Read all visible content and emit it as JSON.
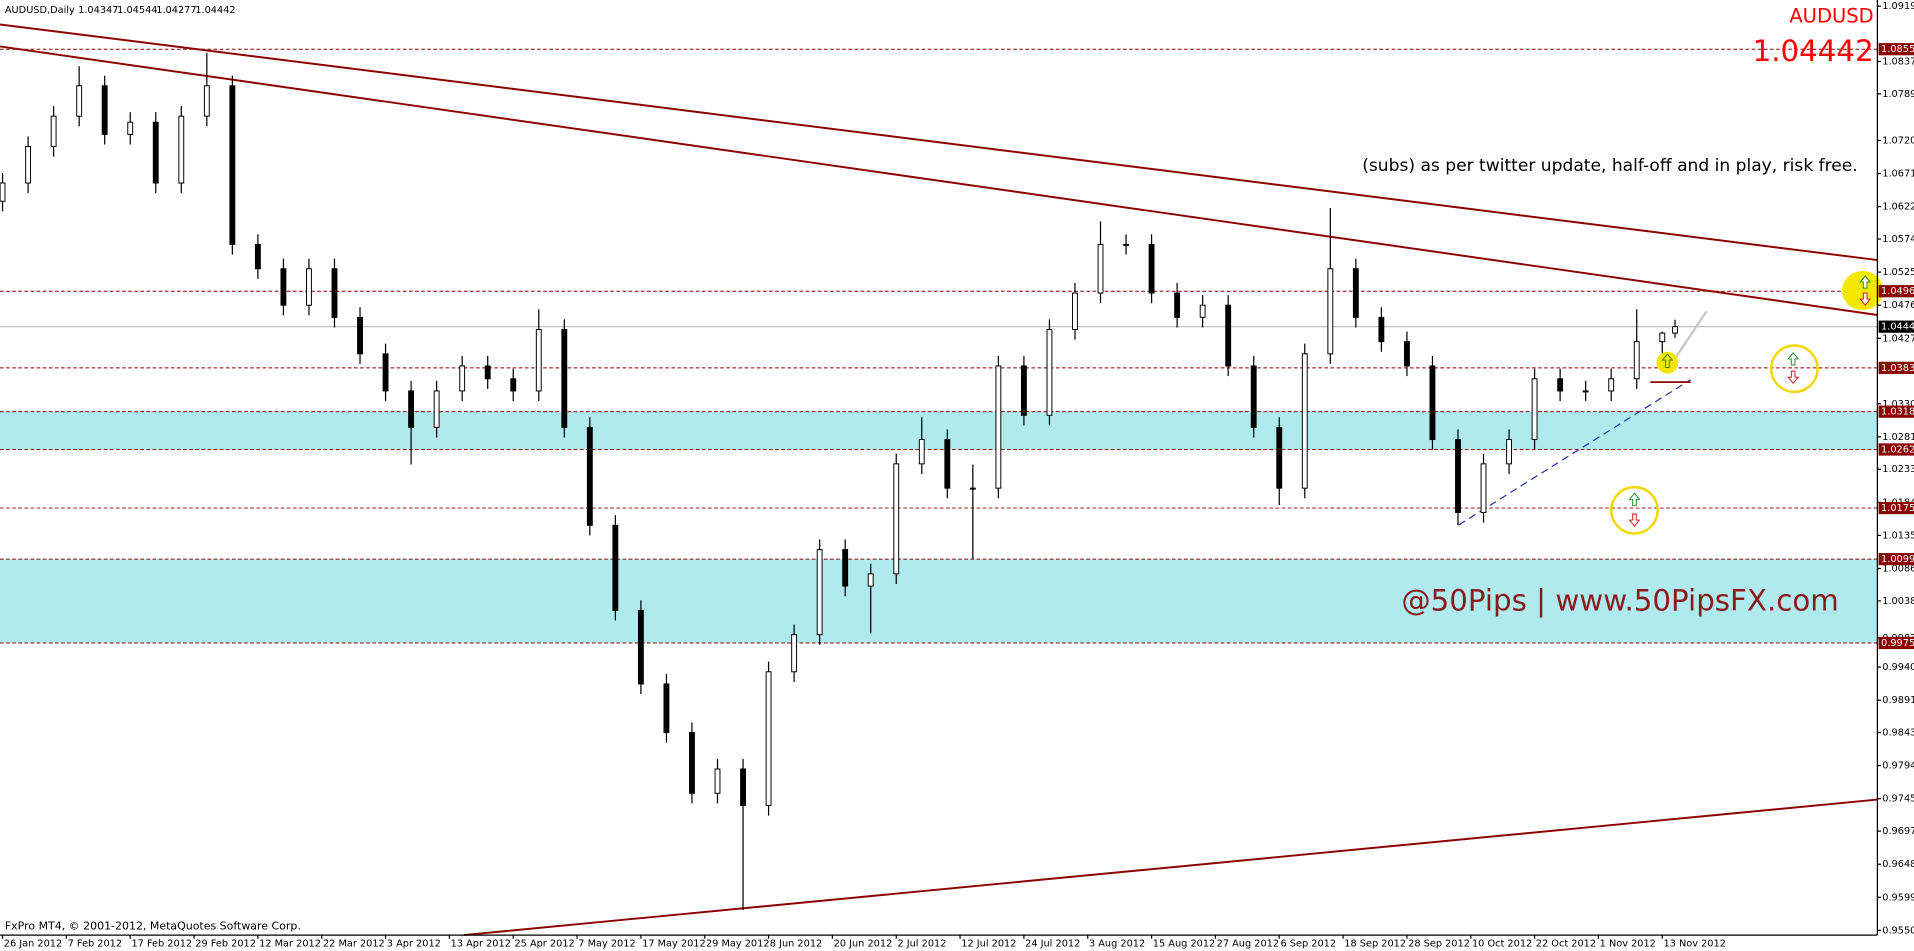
{
  "chart_data": {
    "type": "candlestick",
    "header": {
      "symbol": "AUDUSD,Daily",
      "ohlc": [
        "1.04347",
        "1.04544",
        "1.04277",
        "1.04442"
      ]
    },
    "symbol_big": "AUDUSD",
    "price_big": "1.04442",
    "annotation": "(subs) as per twitter update, half-off and in play, risk free.",
    "watermark": "@50Pips | www.50PipsFX.com",
    "footer": "FxPro MT4, © 2001-2012, MetaQuotes Software Corp.",
    "x": [
      0,
      4,
      8,
      12,
      16,
      20,
      24,
      28,
      32,
      36,
      40,
      44,
      48,
      52,
      56,
      60,
      64,
      68,
      72,
      76,
      80,
      84,
      88,
      92,
      96,
      100,
      104,
      108,
      112,
      116,
      120,
      124,
      128,
      132,
      136,
      140,
      144,
      148,
      152,
      156,
      160,
      164,
      168,
      172,
      176,
      180,
      184,
      188,
      192,
      196,
      200,
      204,
      208,
      212,
      216,
      220,
      224,
      228,
      232,
      236,
      240,
      244,
      248,
      252,
      256,
      260,
      262
    ],
    "open": [
      1.063,
      1.0657,
      1.0711,
      1.0756,
      1.0801,
      1.0729,
      1.0747,
      1.0657,
      1.0756,
      1.0801,
      1.0566,
      1.053,
      1.0476,
      1.053,
      1.0458,
      1.0404,
      1.0349,
      1.0295,
      1.0349,
      1.0386,
      1.0367,
      1.0349,
      1.044,
      1.0295,
      1.015,
      1.0024,
      0.9915,
      0.9843,
      0.9753,
      0.9789,
      0.9735,
      0.9933,
      0.9988,
      1.0114,
      1.006,
      1.0078,
      1.0241,
      1.0277,
      1.0205,
      1.0205,
      1.0386,
      1.0313,
      1.044,
      1.0494,
      1.0566,
      1.0566,
      1.0494,
      1.0458,
      1.0476,
      1.0386,
      1.0295,
      1.0205,
      1.0404,
      1.053,
      1.0458,
      1.0422,
      1.0386,
      1.0277,
      1.0169,
      1.0241,
      1.0277,
      1.0367,
      1.0349,
      1.0349,
      1.0367,
      1.0422,
      1.04347
    ],
    "high": [
      1.0672,
      1.0726,
      1.0771,
      1.083,
      1.0816,
      1.0762,
      1.0762,
      1.0771,
      1.085,
      1.0816,
      1.0581,
      1.0545,
      1.0545,
      1.0545,
      1.0473,
      1.0419,
      1.0364,
      1.0364,
      1.0401,
      1.0401,
      1.0382,
      1.047,
      1.0455,
      1.031,
      1.0165,
      1.0039,
      0.993,
      0.9858,
      0.9804,
      0.9804,
      0.9948,
      1.0003,
      1.0129,
      1.0129,
      1.0093,
      1.0256,
      1.031,
      1.0292,
      1.024,
      1.0401,
      1.0401,
      1.0455,
      1.0509,
      1.06,
      1.0581,
      1.0581,
      1.0509,
      1.0491,
      1.0491,
      1.0401,
      1.031,
      1.0419,
      1.062,
      1.0545,
      1.0473,
      1.0437,
      1.0401,
      1.0292,
      1.0256,
      1.0292,
      1.0382,
      1.0382,
      1.0364,
      1.0382,
      1.047,
      1.0437,
      1.04544
    ],
    "low": [
      1.0615,
      1.0642,
      1.0696,
      1.0741,
      1.0714,
      1.0714,
      1.0642,
      1.0642,
      1.0741,
      1.0551,
      1.0515,
      1.0461,
      1.0461,
      1.0443,
      1.0389,
      1.0334,
      1.024,
      1.028,
      1.0334,
      1.0352,
      1.0334,
      1.0334,
      1.028,
      1.0135,
      1.0009,
      0.99,
      0.9828,
      0.9738,
      0.9738,
      0.958,
      0.972,
      0.9918,
      0.9973,
      1.0045,
      0.999,
      1.0063,
      1.0226,
      1.019,
      1.01,
      1.019,
      1.0298,
      1.0298,
      1.0425,
      1.0479,
      1.0551,
      1.0479,
      1.0443,
      1.0443,
      1.0371,
      1.028,
      1.018,
      1.019,
      1.0389,
      1.0443,
      1.0407,
      1.0371,
      1.0262,
      1.015,
      1.0154,
      1.0226,
      1.0262,
      1.0334,
      1.0334,
      1.0334,
      1.0352,
      1.038,
      1.04277
    ],
    "close": [
      1.0657,
      1.0711,
      1.0756,
      1.0801,
      1.0729,
      1.0747,
      1.0657,
      1.0756,
      1.0801,
      1.0566,
      1.053,
      1.0476,
      1.053,
      1.0458,
      1.0404,
      1.0349,
      1.0295,
      1.0349,
      1.0386,
      1.0367,
      1.0349,
      1.044,
      1.0295,
      1.015,
      1.0024,
      0.9915,
      0.9843,
      0.9753,
      0.9789,
      0.9735,
      0.9933,
      0.9988,
      1.0114,
      1.006,
      1.0078,
      1.0241,
      1.0277,
      1.0205,
      1.0205,
      1.0386,
      1.0313,
      1.044,
      1.0494,
      1.0566,
      1.0566,
      1.0494,
      1.0458,
      1.0476,
      1.0386,
      1.0295,
      1.0205,
      1.0404,
      1.053,
      1.0458,
      1.0422,
      1.0386,
      1.0277,
      1.0169,
      1.0241,
      1.0277,
      1.0367,
      1.0349,
      1.0349,
      1.0367,
      1.0422,
      1.04347,
      1.04442
    ],
    "xlim": [
      -0.4,
      293.7
    ],
    "ylim": [
      0.9543,
      1.0928
    ],
    "xticks": [
      {
        "value": 0,
        "label": "26 Jan 2012"
      },
      {
        "value": 10,
        "label": "7 Feb 2012"
      },
      {
        "value": 20,
        "label": "17 Feb 2012"
      },
      {
        "value": 30,
        "label": "29 Feb 2012"
      },
      {
        "value": 40,
        "label": "12 Mar 2012"
      },
      {
        "value": 50,
        "label": "22 Mar 2012"
      },
      {
        "value": 60,
        "label": "3 Apr 2012"
      },
      {
        "value": 70,
        "label": "13 Apr 2012"
      },
      {
        "value": 80,
        "label": "25 Apr 2012"
      },
      {
        "value": 90,
        "label": "7 May 2012"
      },
      {
        "value": 100,
        "label": "17 May 2012"
      },
      {
        "value": 110,
        "label": "29 May 2012"
      },
      {
        "value": 120,
        "label": "8 Jun 2012"
      },
      {
        "value": 130,
        "label": "20 Jun 2012"
      },
      {
        "value": 140,
        "label": "2 Jul 2012"
      },
      {
        "value": 150,
        "label": "12 Jul 2012"
      },
      {
        "value": 160,
        "label": "24 Jul 2012"
      },
      {
        "value": 170,
        "label": "3 Aug 2012"
      },
      {
        "value": 180,
        "label": "15 Aug 2012"
      },
      {
        "value": 190,
        "label": "27 Aug 2012"
      },
      {
        "value": 200,
        "label": "6 Sep 2012"
      },
      {
        "value": 210,
        "label": "18 Sep 2012"
      },
      {
        "value": 220,
        "label": "28 Sep 2012"
      },
      {
        "value": 230,
        "label": "10 Oct 2012"
      },
      {
        "value": 240,
        "label": "22 Oct 2012"
      },
      {
        "value": 250,
        "label": "1 Nov 2012"
      },
      {
        "value": 260,
        "label": "13 Nov 2012"
      }
    ],
    "yticks": [
      {
        "value": 1.0919,
        "label": "1.09190"
      },
      {
        "value": 1.0837,
        "label": "1.08370"
      },
      {
        "value": 1.0789,
        "label": "1.07890"
      },
      {
        "value": 1.072,
        "label": "1.07200"
      },
      {
        "value": 1.0671,
        "label": "1.06710"
      },
      {
        "value": 1.0622,
        "label": "1.06220"
      },
      {
        "value": 1.0574,
        "label": "1.05740"
      },
      {
        "value": 1.0525,
        "label": "1.05250"
      },
      {
        "value": 1.0476,
        "label": "1.04760"
      },
      {
        "value": 1.0427,
        "label": "1.04270"
      },
      {
        "value": 1.033,
        "label": "1.03300"
      },
      {
        "value": 1.0281,
        "label": "1.02810"
      },
      {
        "value": 1.0233,
        "label": "1.02330"
      },
      {
        "value": 1.0184,
        "label": "1.01840"
      },
      {
        "value": 1.0135,
        "label": "1.01350"
      },
      {
        "value": 1.0086,
        "label": "1.00860"
      },
      {
        "value": 1.0038,
        "label": "1.00380"
      },
      {
        "value": 0.9983,
        "label": "0.99830"
      },
      {
        "value": 0.994,
        "label": "0.99400"
      },
      {
        "value": 0.9891,
        "label": "0.98910"
      },
      {
        "value": 0.9843,
        "label": "0.98430"
      },
      {
        "value": 0.9794,
        "label": "0.97940"
      },
      {
        "value": 0.9745,
        "label": "0.97450"
      },
      {
        "value": 0.9697,
        "label": "0.96970"
      },
      {
        "value": 0.9648,
        "label": "0.96480"
      },
      {
        "value": 0.9599,
        "label": "0.95990"
      },
      {
        "value": 0.955,
        "label": "0.95500"
      }
    ],
    "levels": [
      {
        "value": 1.08552,
        "label": "1.08552"
      },
      {
        "value": 1.04967,
        "label": "1.04967"
      },
      {
        "value": 1.03832,
        "label": "1.03832"
      },
      {
        "value": 1.03183,
        "label": "1.03183"
      },
      {
        "value": 1.02623,
        "label": "1.02623"
      },
      {
        "value": 1.01755,
        "label": "1.01755"
      },
      {
        "value": 1.00999,
        "label": "1.00999"
      },
      {
        "value": 0.99757,
        "label": "0.99757"
      }
    ],
    "current": {
      "value": 1.04442,
      "label": "1.04442"
    },
    "zones": [
      [
        1.03183,
        1.02623
      ],
      [
        1.00999,
        0.99757
      ]
    ],
    "colors": {
      "level": "#8b0000",
      "zone": "#aeeaee",
      "bull": "#ffffff",
      "bear": "#000000",
      "current": "#c0c0c0"
    }
  }
}
